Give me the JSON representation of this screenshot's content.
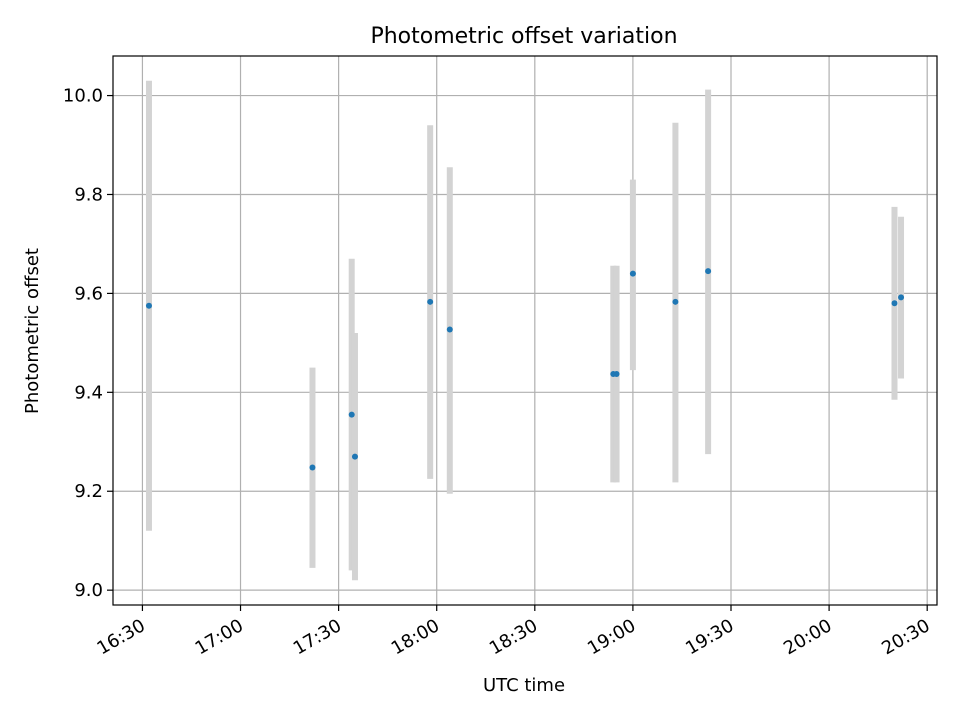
{
  "chart_data": {
    "type": "scatter",
    "title": "Photometric offset variation",
    "xlabel": "UTC time",
    "ylabel": "Photometric offset",
    "x_ticks": [
      "16:30",
      "17:00",
      "17:30",
      "18:00",
      "18:30",
      "19:00",
      "19:30",
      "20:00",
      "20:30"
    ],
    "y_ticks": [
      "9.0",
      "9.2",
      "9.4",
      "9.6",
      "9.8",
      "10.0"
    ],
    "xlim": [
      "16:21",
      "20:33"
    ],
    "ylim": [
      8.97,
      10.08
    ],
    "grid": true,
    "series": [
      {
        "color": "#1f77b4",
        "error_bar_color": "#d3d3d3",
        "points": [
          {
            "x": "16:32",
            "y": 9.575,
            "ylow": 9.12,
            "yhigh": 10.03
          },
          {
            "x": "17:22",
            "y": 9.248,
            "ylow": 9.045,
            "yhigh": 9.45
          },
          {
            "x": "17:34",
            "y": 9.355,
            "ylow": 9.04,
            "yhigh": 9.67
          },
          {
            "x": "17:35",
            "y": 9.27,
            "ylow": 9.02,
            "yhigh": 9.52
          },
          {
            "x": "17:58",
            "y": 9.583,
            "ylow": 9.225,
            "yhigh": 9.94
          },
          {
            "x": "18:04",
            "y": 9.527,
            "ylow": 9.195,
            "yhigh": 9.855
          },
          {
            "x": "18:54",
            "y": 9.437,
            "ylow": 9.218,
            "yhigh": 9.656
          },
          {
            "x": "18:55",
            "y": 9.437,
            "ylow": 9.218,
            "yhigh": 9.656
          },
          {
            "x": "19:00",
            "y": 9.64,
            "ylow": 9.445,
            "yhigh": 9.83
          },
          {
            "x": "19:13",
            "y": 9.583,
            "ylow": 9.218,
            "yhigh": 9.945
          },
          {
            "x": "19:23",
            "y": 9.645,
            "ylow": 9.275,
            "yhigh": 10.012
          },
          {
            "x": "20:20",
            "y": 9.58,
            "ylow": 9.385,
            "yhigh": 9.775
          },
          {
            "x": "20:22",
            "y": 9.592,
            "ylow": 9.428,
            "yhigh": 9.755
          }
        ]
      }
    ]
  }
}
